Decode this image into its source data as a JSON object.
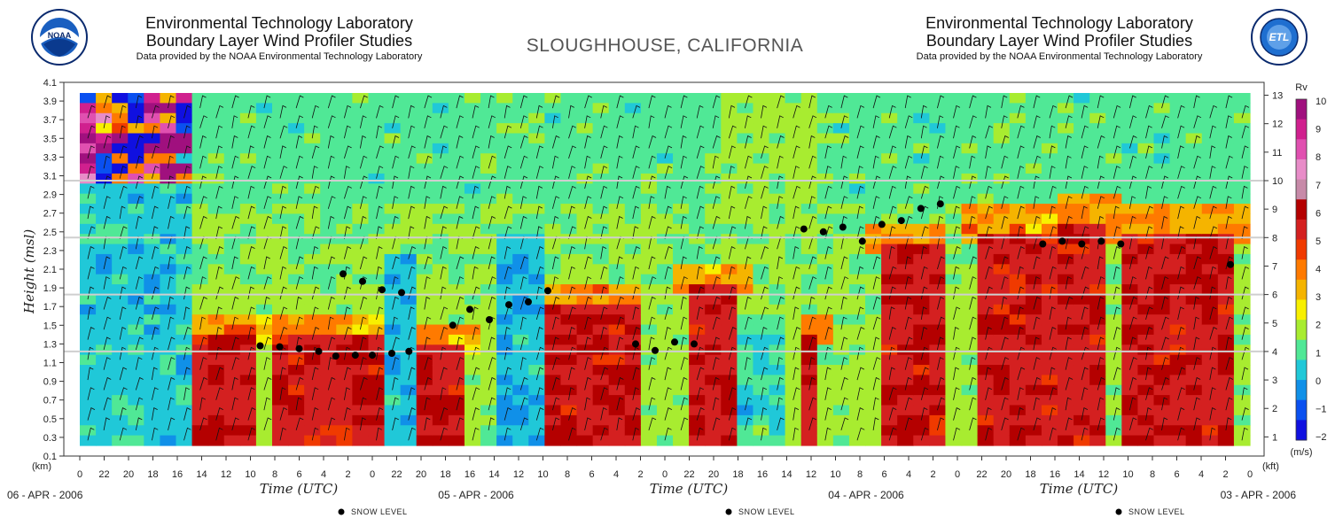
{
  "header": {
    "left": {
      "line1": "Environmental Technology Laboratory",
      "line2": "Boundary Layer Wind Profiler Studies",
      "line3": "Data provided by the NOAA Environmental Technology Laboratory"
    },
    "right": {
      "line1": "Environmental Technology Laboratory",
      "line2": "Boundary Layer Wind Profiler Studies",
      "line3": "Data provided by the NOAA Environmental Technology Laboratory"
    },
    "site": "SLOUGHHOUSE, CALIFORNIA",
    "logos": {
      "left": "noaa-logo",
      "right": "etl-logo"
    }
  },
  "chart_data": {
    "type": "heatmap",
    "ylabel": "Height (msl)",
    "y_unit_left": "(km)",
    "y_unit_right": "(kft)",
    "xlabel": "Time (UTC)",
    "ylim_km": [
      0.1,
      4.1
    ],
    "yticks_km": [
      "0.1",
      "0.3",
      "0.5",
      "0.7",
      "0.9",
      "1.1",
      "1.3",
      "1.5",
      "1.7",
      "1.9",
      "2.1",
      "2.3",
      "2.5",
      "2.7",
      "2.9",
      "3.1",
      "3.3",
      "3.5",
      "3.7",
      "3.9",
      "4.1"
    ],
    "yticks_kft": [
      "1",
      "2",
      "3",
      "4",
      "5",
      "6",
      "7",
      "8",
      "9",
      "10",
      "11",
      "12",
      "13"
    ],
    "days": [
      {
        "date": "06 - APR - 2006",
        "hours": [
          "0",
          "22",
          "20",
          "18",
          "16",
          "14",
          "12",
          "10",
          "8",
          "6",
          "4",
          "2"
        ]
      },
      {
        "date": "05 - APR - 2006",
        "hours": [
          "0",
          "22",
          "20",
          "18",
          "16",
          "14",
          "12",
          "10",
          "8",
          "6",
          "4",
          "2"
        ]
      },
      {
        "date": "04 - APR - 2006",
        "hours": [
          "0",
          "22",
          "20",
          "18",
          "16",
          "14",
          "12",
          "10",
          "8",
          "6",
          "4",
          "2"
        ]
      },
      {
        "date": "03 - APR - 2006",
        "hours": [
          "0",
          "22",
          "20",
          "18",
          "16",
          "14",
          "12",
          "10",
          "8",
          "6",
          "4",
          "2"
        ]
      }
    ],
    "x_end_label": "0",
    "colorbar": {
      "title": "Rv",
      "unit": "(m/s)",
      "ticks": [
        "10",
        "9",
        "8",
        "7",
        "6",
        "5",
        "4",
        "3",
        "2",
        "1",
        "0",
        "−1",
        "−2"
      ],
      "colors": [
        "#a0107e",
        "#d0208e",
        "#e050b0",
        "#e88cc8",
        "#c78aa8",
        "#b40000",
        "#d42020",
        "#f03a00",
        "#ff7a00",
        "#f5b400",
        "#f8f000",
        "#a8ec30",
        "#50e896",
        "#20c8d8",
        "#1090e8",
        "#0a50f0",
        "#1010e0"
      ]
    },
    "snow_level": {
      "label": "SNOW LEVEL",
      "points_km": [
        [
          13.5,
          1.22
        ],
        [
          12.8,
          1.2
        ],
        [
          12.0,
          1.18
        ],
        [
          11.3,
          1.18
        ],
        [
          10.5,
          1.17
        ],
        [
          9.8,
          1.22
        ],
        [
          9.0,
          1.25
        ],
        [
          8.2,
          1.27
        ],
        [
          7.4,
          1.28
        ],
        [
          25.2,
          1.3
        ],
        [
          24.4,
          1.32
        ],
        [
          23.6,
          1.23
        ],
        [
          22.8,
          1.3
        ],
        [
          19.2,
          1.87
        ],
        [
          18.4,
          1.75
        ],
        [
          17.6,
          1.72
        ],
        [
          16.8,
          1.56
        ],
        [
          16.0,
          1.67
        ],
        [
          15.3,
          1.5
        ],
        [
          13.2,
          1.85
        ],
        [
          12.4,
          1.88
        ],
        [
          11.6,
          1.97
        ],
        [
          10.8,
          2.05
        ],
        [
          47.2,
          2.15
        ],
        [
          42.7,
          2.37
        ],
        [
          41.9,
          2.4
        ],
        [
          41.1,
          2.37
        ],
        [
          40.3,
          2.4
        ],
        [
          39.5,
          2.37
        ],
        [
          35.3,
          2.8
        ],
        [
          34.5,
          2.75
        ],
        [
          33.7,
          2.62
        ],
        [
          32.9,
          2.58
        ],
        [
          32.1,
          2.4
        ],
        [
          31.3,
          2.55
        ],
        [
          30.5,
          2.5
        ],
        [
          29.7,
          2.53
        ]
      ]
    },
    "reference_lines_kft": [
      4,
      6,
      8,
      10
    ]
  }
}
